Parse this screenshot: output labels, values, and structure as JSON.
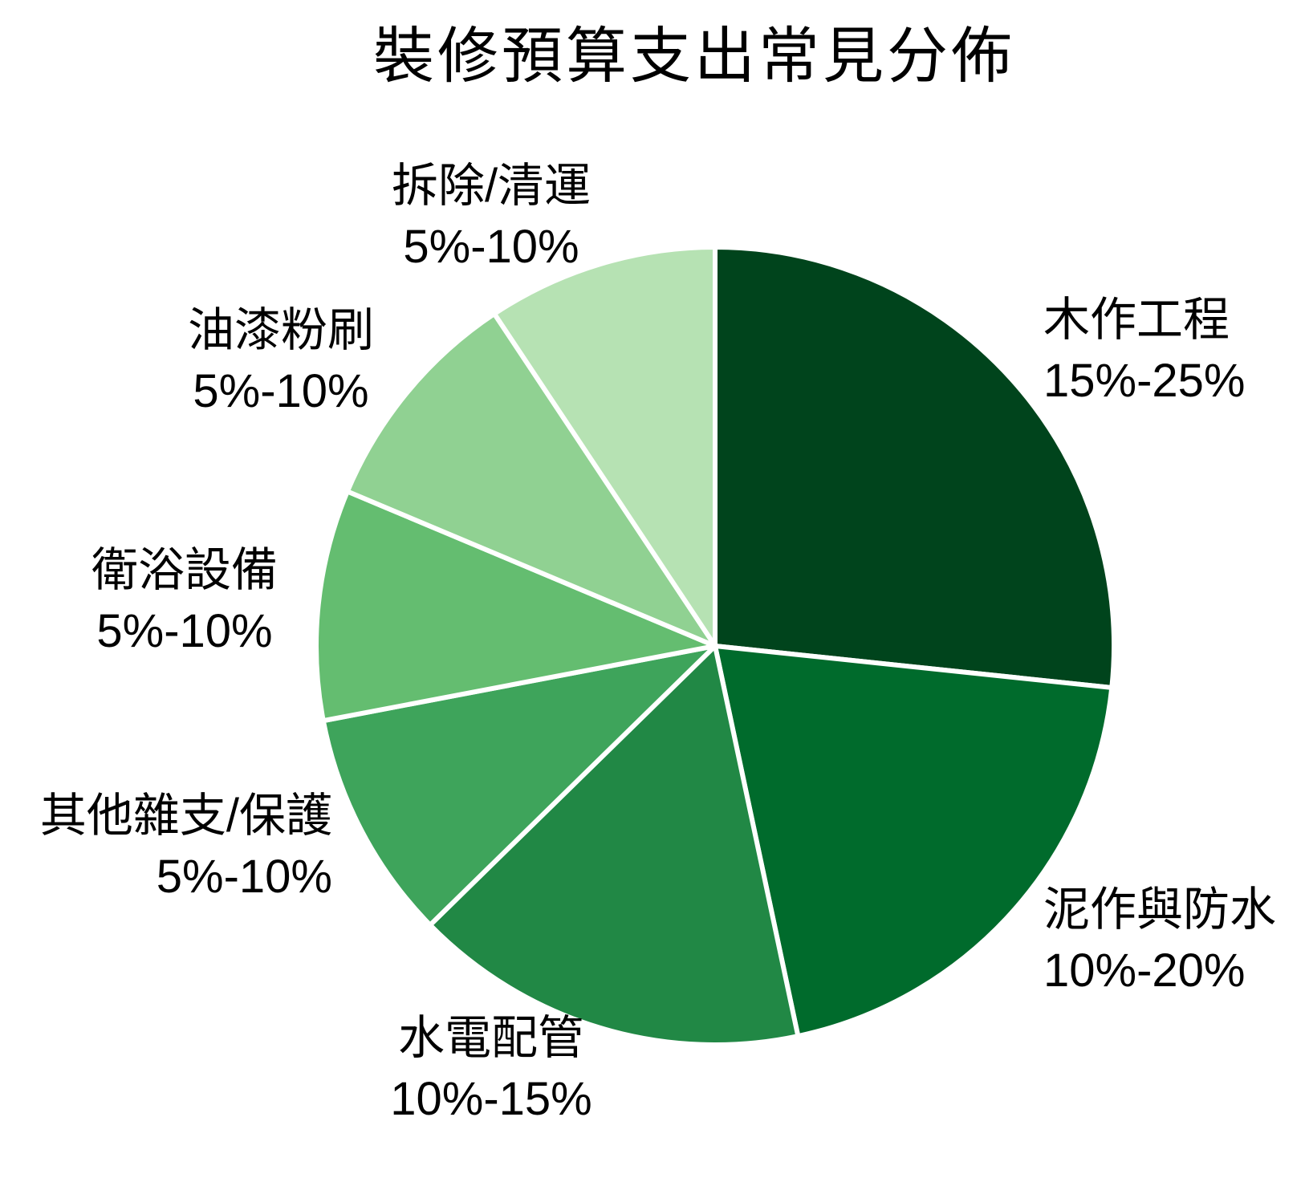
{
  "title": "裝修預算支出常見分佈",
  "background_color": "#ffffff",
  "text_color": "#000000",
  "chart_data": {
    "type": "pie",
    "title": "裝修預算支出常見分佈",
    "start_angle_deg": 0,
    "direction": "clockwise",
    "separator_color": "#ffffff",
    "legend_position": "none",
    "labels_position": "around-pie",
    "segments": [
      {
        "label": "木作工程",
        "range": "15%-25%",
        "value": 20,
        "normalized_percent": 26.7,
        "color": "#00441c"
      },
      {
        "label": "泥作與防水",
        "range": "10%-20%",
        "value": 15,
        "normalized_percent": 20.0,
        "color": "#006b2c"
      },
      {
        "label": "水電配管",
        "range": "10%-15%",
        "value": 12,
        "normalized_percent": 16.0,
        "color": "#218845"
      },
      {
        "label": "其他雜支/保護",
        "range": "5%-10%",
        "value": 7,
        "normalized_percent": 9.3,
        "color": "#3ea45b"
      },
      {
        "label": "衛浴設備",
        "range": "5%-10%",
        "value": 7,
        "normalized_percent": 9.3,
        "color": "#64bd70"
      },
      {
        "label": "油漆粉刷",
        "range": "5%-10%",
        "value": 7,
        "normalized_percent": 9.3,
        "color": "#90d192"
      },
      {
        "label": "拆除/清運",
        "range": "5%-10%",
        "value": 7,
        "normalized_percent": 9.3,
        "color": "#b6e2b3"
      }
    ]
  }
}
